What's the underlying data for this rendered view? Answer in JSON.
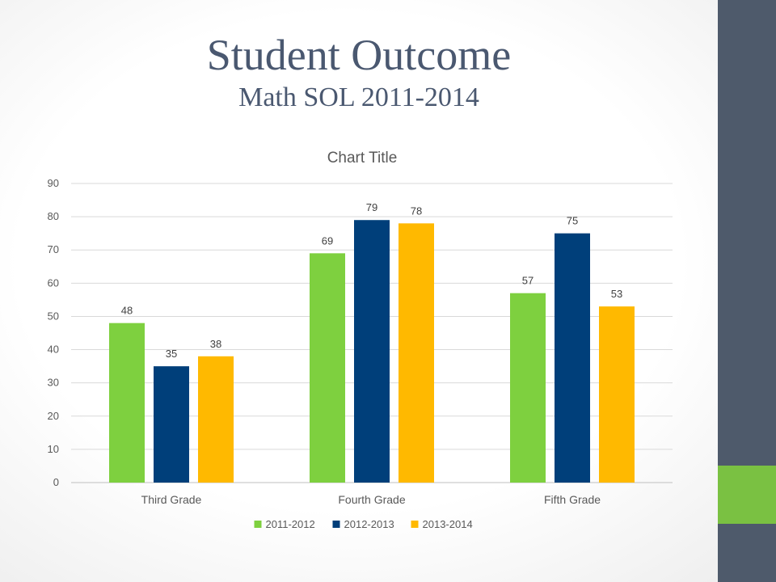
{
  "slide": {
    "title": "Student Outcome",
    "subtitle": "Math SOL 2011-2014"
  },
  "colors": {
    "sidebar": "#4e5a6b",
    "sidebar_accent": "#7ac142",
    "title_text": "#4a5870"
  },
  "chart_data": {
    "type": "bar",
    "title": "Chart Title",
    "categories": [
      "Third Grade",
      "Fourth Grade",
      "Fifth Grade"
    ],
    "series": [
      {
        "name": "2011-2012",
        "color": "#7ed03f",
        "values": [
          48,
          69,
          57
        ]
      },
      {
        "name": "2012-2013",
        "color": "#003f7a",
        "values": [
          35,
          79,
          75
        ]
      },
      {
        "name": "2013-2014",
        "color": "#ffb900",
        "values": [
          38,
          78,
          53
        ]
      }
    ],
    "ylim": [
      0,
      90
    ],
    "yticks": [
      0,
      10,
      20,
      30,
      40,
      50,
      60,
      70,
      80,
      90
    ],
    "xlabel": "",
    "ylabel": "",
    "grid": true,
    "legend": "bottom",
    "data_labels": true
  }
}
